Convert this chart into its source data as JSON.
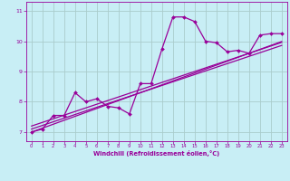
{
  "xlabel": "Windchill (Refroidissement éolien,°C)",
  "x_data": [
    0,
    1,
    2,
    3,
    4,
    5,
    6,
    7,
    8,
    9,
    10,
    11,
    12,
    13,
    14,
    15,
    16,
    17,
    18,
    19,
    20,
    21,
    22,
    23
  ],
  "y_main": [
    7.0,
    7.1,
    7.55,
    7.55,
    8.3,
    8.0,
    8.1,
    7.85,
    7.8,
    7.6,
    8.6,
    8.6,
    9.75,
    10.8,
    10.8,
    10.65,
    10.0,
    9.95,
    9.65,
    9.7,
    9.6,
    10.2,
    10.25,
    10.25
  ],
  "y_line1": [
    7.0,
    7.13,
    7.26,
    7.39,
    7.52,
    7.65,
    7.78,
    7.91,
    8.04,
    8.17,
    8.3,
    8.43,
    8.56,
    8.69,
    8.82,
    8.95,
    9.08,
    9.21,
    9.34,
    9.47,
    9.6,
    9.73,
    9.86,
    9.99
  ],
  "y_line2": [
    7.1,
    7.22,
    7.34,
    7.46,
    7.58,
    7.7,
    7.82,
    7.94,
    8.06,
    8.18,
    8.3,
    8.42,
    8.54,
    8.66,
    8.78,
    8.9,
    9.02,
    9.14,
    9.26,
    9.38,
    9.5,
    9.62,
    9.74,
    9.86
  ],
  "y_line3": [
    7.2,
    7.32,
    7.44,
    7.56,
    7.68,
    7.8,
    7.92,
    8.04,
    8.16,
    8.28,
    8.4,
    8.52,
    8.64,
    8.76,
    8.88,
    9.0,
    9.12,
    9.24,
    9.36,
    9.48,
    9.6,
    9.72,
    9.84,
    9.96
  ],
  "line_color": "#990099",
  "bg_color": "#c8eef5",
  "grid_color": "#aacccc",
  "axis_label_color": "#990099",
  "tick_label_color": "#990099",
  "ylim": [
    6.7,
    11.3
  ],
  "xlim": [
    -0.5,
    23.5
  ],
  "yticks": [
    7,
    8,
    9,
    10,
    11
  ],
  "xticks": [
    0,
    1,
    2,
    3,
    4,
    5,
    6,
    7,
    8,
    9,
    10,
    11,
    12,
    13,
    14,
    15,
    16,
    17,
    18,
    19,
    20,
    21,
    22,
    23
  ]
}
